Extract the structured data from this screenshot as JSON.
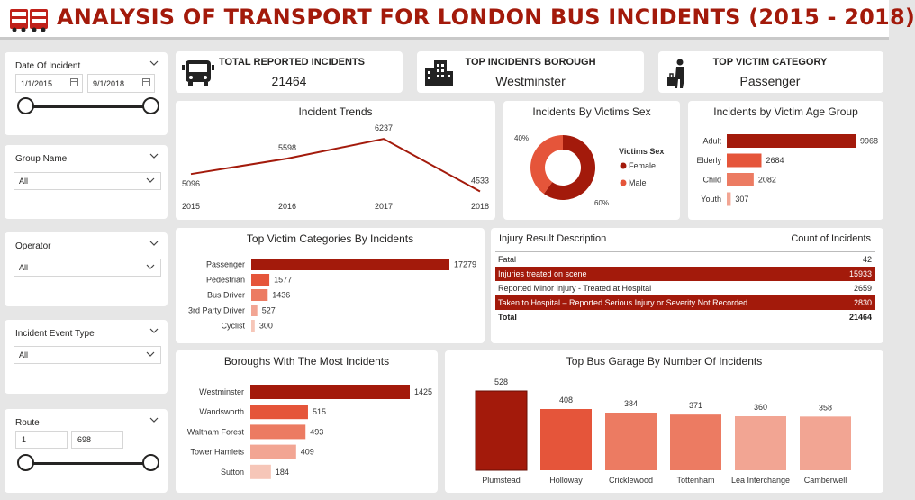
{
  "header": {
    "title": "ANALYSIS OF TRANSPORT FOR LONDON BUS INCIDENTS (2015 - 2018)",
    "logo_icon": "double-decker-bus-icon"
  },
  "filters": {
    "date": {
      "label": "Date Of Incident",
      "start": "1/1/2015",
      "end": "9/1/2018"
    },
    "group_name": {
      "label": "Group Name",
      "value": "All"
    },
    "operator": {
      "label": "Operator",
      "value": "All"
    },
    "incident_event_type": {
      "label": "Incident Event Type",
      "value": "All"
    },
    "route": {
      "label": "Route",
      "min": "1",
      "max": "698"
    }
  },
  "kpis": {
    "total": {
      "title": "TOTAL REPORTED INCIDENTS",
      "value": "21464",
      "icon": "bus-icon"
    },
    "borough": {
      "title": "TOP INCIDENTS BOROUGH",
      "value": "Westminster",
      "icon": "buildings-icon"
    },
    "victim": {
      "title": "TOP VICTIM CATEGORY",
      "value": "Passenger",
      "icon": "passenger-icon"
    }
  },
  "colors": {
    "accent": "#a31a0b",
    "orange": "#e5553a",
    "mid": "#ec7b62",
    "light": "#f2a593",
    "pale": "#f6c6b8"
  },
  "chart_data": [
    {
      "id": "trends",
      "type": "line",
      "title": "Incident Trends",
      "x": [
        "2015",
        "2016",
        "2017",
        "2018"
      ],
      "values": [
        5096,
        5598,
        6237,
        4533
      ]
    },
    {
      "id": "sex",
      "type": "pie",
      "title": "Incidents By Victims Sex",
      "legend_title": "Victims Sex",
      "labels": [
        "Female",
        "Male"
      ],
      "values": [
        60,
        40
      ],
      "value_labels": [
        "60%",
        "40%"
      ]
    },
    {
      "id": "age",
      "type": "bar",
      "title": "Incidents by Victim Age Group",
      "categories": [
        "Adult",
        "Elderly",
        "Child",
        "Youth"
      ],
      "values": [
        9968,
        2684,
        2082,
        307
      ]
    },
    {
      "id": "victim_cats",
      "type": "bar",
      "title": "Top Victim Categories By Incidents",
      "categories": [
        "Passenger",
        "Pedestrian",
        "Bus Driver",
        "3rd Party Driver",
        "Cyclist"
      ],
      "values": [
        17279,
        1577,
        1436,
        527,
        300
      ]
    },
    {
      "id": "boroughs",
      "type": "bar",
      "title": "Boroughs With The Most Incidents",
      "categories": [
        "Westminster",
        "Wandsworth",
        "Waltham Forest",
        "Tower Hamlets",
        "Sutton"
      ],
      "values": [
        1425,
        515,
        493,
        409,
        184
      ]
    },
    {
      "id": "garages",
      "type": "bar",
      "title": "Top Bus Garage By Number Of Incidents",
      "categories": [
        "Plumstead",
        "Holloway",
        "Cricklewood",
        "Tottenham",
        "Lea Interchange",
        "Camberwell"
      ],
      "values": [
        528,
        408,
        384,
        371,
        360,
        358
      ]
    }
  ],
  "injury_table": {
    "headers": [
      "Injury Result Description",
      "Count of Incidents"
    ],
    "rows": [
      {
        "desc": "Fatal",
        "count": "42"
      },
      {
        "desc": "Injuries treated on scene",
        "count": "15933"
      },
      {
        "desc": "Reported Minor Injury - Treated at Hospital",
        "count": "2659"
      },
      {
        "desc": "Taken to Hospital – Reported Serious Injury or Severity Not Recorded",
        "count": "2830"
      }
    ],
    "total_label": "Total",
    "total_value": "21464"
  }
}
